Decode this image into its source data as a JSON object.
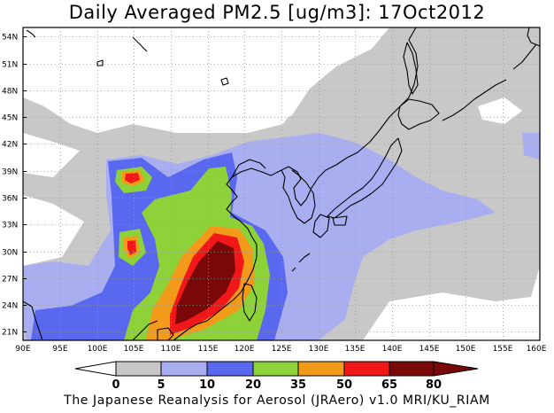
{
  "title": "Daily Averaged PM2.5 [ug/m3]: 17Oct2012",
  "footer": "The Japanese Reanalysis for Aerosol (JRAero) v1.0 MRI/KU_RIAM",
  "map": {
    "lat_labels": [
      "54N",
      "51N",
      "48N",
      "45N",
      "42N",
      "39N",
      "36N",
      "33N",
      "30N",
      "27N",
      "24N",
      "21N"
    ],
    "lon_labels": [
      "90E",
      "95E",
      "100E",
      "105E",
      "110E",
      "115E",
      "120E",
      "125E",
      "130E",
      "135E",
      "140E",
      "145E",
      "150E",
      "155E",
      "160E"
    ]
  },
  "colorbar": {
    "levels": [
      "0",
      "5",
      "10",
      "20",
      "35",
      "50",
      "65",
      "80"
    ],
    "colors": [
      "#ffffff",
      "#c8c8c8",
      "#a8aef0",
      "#5a68f0",
      "#8ed23a",
      "#f29a1a",
      "#f01818",
      "#7a0808"
    ]
  }
}
